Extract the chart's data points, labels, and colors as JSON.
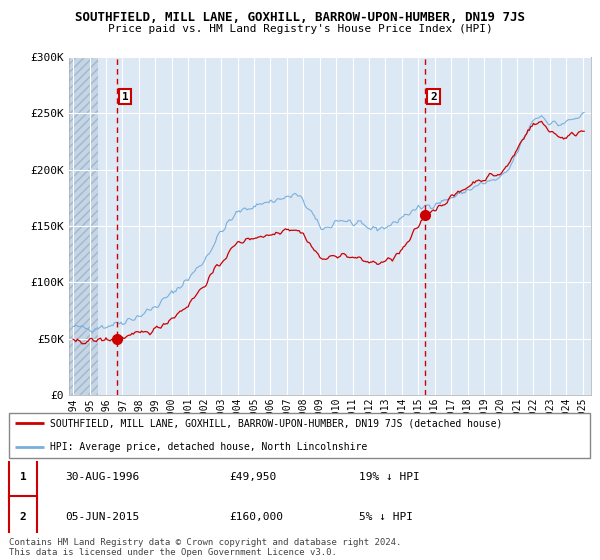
{
  "title": "SOUTHFIELD, MILL LANE, GOXHILL, BARROW-UPON-HUMBER, DN19 7JS",
  "subtitle": "Price paid vs. HM Land Registry's House Price Index (HPI)",
  "xlim_start": 1993.75,
  "xlim_end": 2025.5,
  "ylim_min": 0,
  "ylim_max": 300000,
  "yticks": [
    0,
    50000,
    100000,
    150000,
    200000,
    250000,
    300000
  ],
  "ytick_labels": [
    "£0",
    "£50K",
    "£100K",
    "£150K",
    "£200K",
    "£250K",
    "£300K"
  ],
  "xticks": [
    1994,
    1995,
    1996,
    1997,
    1998,
    1999,
    2000,
    2001,
    2002,
    2003,
    2004,
    2005,
    2006,
    2007,
    2008,
    2009,
    2010,
    2011,
    2012,
    2013,
    2014,
    2015,
    2016,
    2017,
    2018,
    2019,
    2020,
    2021,
    2022,
    2023,
    2024,
    2025
  ],
  "legend_line1": "SOUTHFIELD, MILL LANE, GOXHILL, BARROW-UPON-HUMBER, DN19 7JS (detached house)",
  "legend_line2": "HPI: Average price, detached house, North Lincolnshire",
  "sale1_date": "30-AUG-1996",
  "sale1_price": "£49,950",
  "sale1_pct": "19% ↓ HPI",
  "sale1_x": 1996.67,
  "sale1_y": 49950,
  "sale2_date": "05-JUN-2015",
  "sale2_price": "£160,000",
  "sale2_pct": "5% ↓ HPI",
  "sale2_x": 2015.42,
  "sale2_y": 160000,
  "line_color_red": "#cc0000",
  "line_color_blue": "#7aafdb",
  "vline_color": "#cc0000",
  "plot_bg_color": "#dce9f5",
  "hatch_color": "#c8d8e8",
  "grid_color": "#ffffff",
  "footer_text": "Contains HM Land Registry data © Crown copyright and database right 2024.\nThis data is licensed under the Open Government Licence v3.0."
}
